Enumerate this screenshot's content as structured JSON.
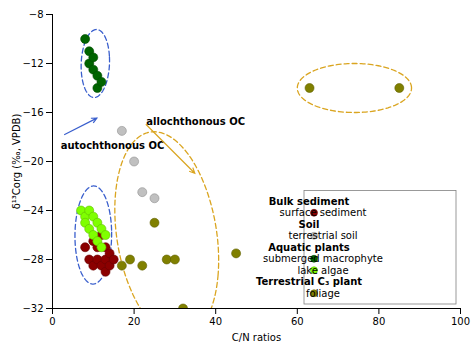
{
  "chart_data": {
    "type": "scatter",
    "xlabel": "C/N ratios",
    "ylabel": "δ¹³Corg (‰, VPDB)",
    "xlim": [
      0,
      100
    ],
    "ylim": [
      -32,
      -8
    ],
    "xticks": [
      0,
      20,
      40,
      60,
      80,
      100
    ],
    "yticks": [
      -32,
      -28,
      -24,
      -20,
      -16,
      -12,
      -8
    ],
    "grid": false,
    "legend": "lower right",
    "series": [
      {
        "name": "foliage",
        "color": "#808000",
        "x": [
          17,
          19,
          22,
          25,
          28,
          30,
          32,
          45,
          63,
          85
        ],
        "y": [
          -28.5,
          -28,
          -28.5,
          -25,
          -28,
          -28,
          -32,
          -27.5,
          -14,
          -14
        ]
      },
      {
        "name": "terrestrial soil",
        "color": "#C0C0C0",
        "x": [
          17,
          20,
          22,
          25
        ],
        "y": [
          -17.5,
          -20,
          -22.5,
          -23
        ]
      },
      {
        "name": "surface sediment",
        "color": "#8B0000",
        "x": [
          8,
          9,
          10,
          10,
          11,
          11,
          12,
          12,
          13,
          13,
          13,
          14,
          14,
          15
        ],
        "y": [
          -27,
          -28,
          -26.5,
          -28.5,
          -27,
          -28,
          -26,
          -28.5,
          -27,
          -28,
          -29,
          -27.5,
          -28.5,
          -28
        ]
      },
      {
        "name": "lake algae",
        "color": "#7FFF00",
        "x": [
          7,
          8,
          8,
          9,
          9,
          10,
          10,
          11,
          11,
          12,
          12,
          13
        ],
        "y": [
          -24,
          -24.5,
          -25,
          -24,
          -25.5,
          -24.5,
          -26,
          -25,
          -26.5,
          -25.5,
          -27,
          -26
        ]
      },
      {
        "name": "submerged macrophyte",
        "color": "#006400",
        "x": [
          8,
          9,
          9,
          10,
          10,
          11,
          11,
          12
        ],
        "y": [
          -10,
          -11,
          -12,
          -11.5,
          -12.5,
          -13,
          -14,
          -13.5
        ]
      }
    ],
    "legend_groups": [
      {
        "title": "Bulk sediment",
        "entries": [
          "surface sediment"
        ]
      },
      {
        "title": "Soil",
        "entries": [
          "terrestrial soil"
        ]
      },
      {
        "title": "Aquatic plants",
        "entries": [
          "submerged macrophyte",
          "lake algae"
        ]
      },
      {
        "title": "Terrestrial C₃ plant",
        "entries": [
          "foliage"
        ]
      }
    ],
    "ellipses": [
      {
        "center": [
          10.5,
          -12
        ],
        "width": 7,
        "height": 5.5,
        "angle": 10,
        "color": "#3A5FCD",
        "line_style": "dashed"
      },
      {
        "center": [
          10,
          -26
        ],
        "width": 9,
        "height": 8,
        "angle": 5,
        "color": "#3A5FCD",
        "line_style": "dashed"
      },
      {
        "center": [
          28,
          -26
        ],
        "width": 26,
        "height": 16,
        "angle": -15,
        "color": "#DAA520",
        "line_style": "dashed"
      },
      {
        "center": [
          74,
          -14
        ],
        "width": 28,
        "height": 4,
        "angle": 0,
        "color": "#DAA520",
        "line_style": "dashed"
      }
    ],
    "annotations": [
      {
        "text": "autochthonous OC",
        "xy": [
          11,
          -16.5
        ],
        "xytext": [
          2,
          -19
        ],
        "color": "#3A5FCD"
      },
      {
        "text": "allochthonous OC",
        "xy": [
          35,
          -21
        ],
        "xytext": [
          23,
          -17
        ],
        "color": "#DAA520"
      }
    ]
  }
}
